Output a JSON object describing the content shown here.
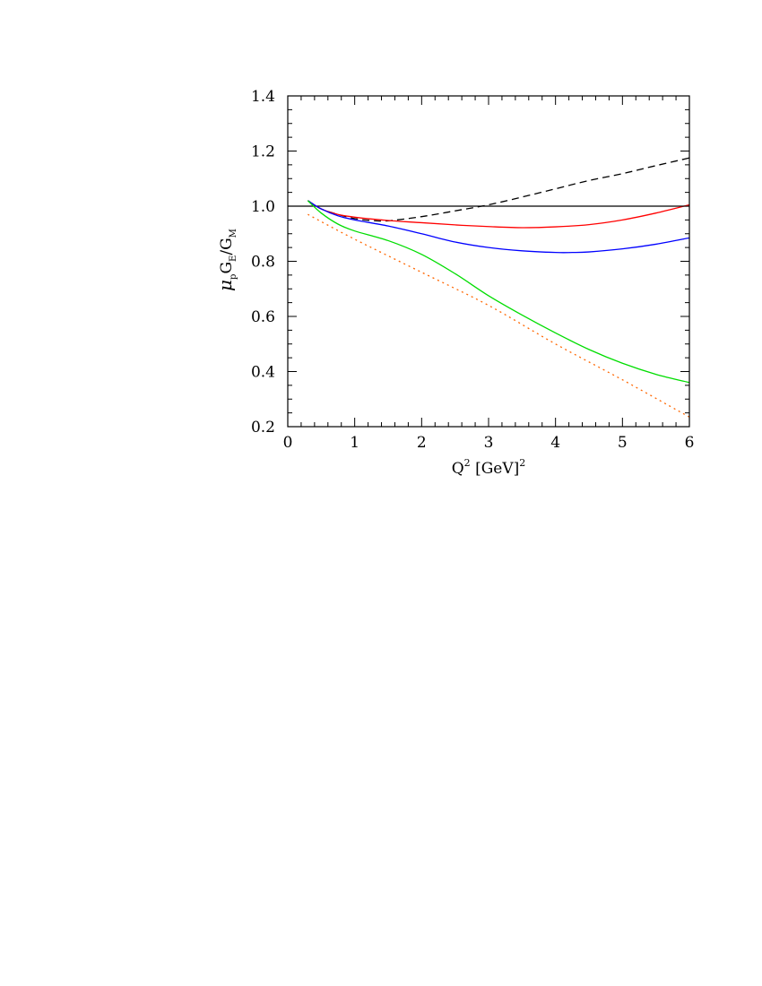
{
  "chart_data": {
    "type": "line",
    "title": "",
    "xlabel": {
      "base": "Q",
      "sup": "2",
      "unit": "[GeV]",
      "unit_sup": "2"
    },
    "ylabel": {
      "mu": "μ",
      "mu_sub": "p",
      "g1": "G",
      "g1_sub": "E",
      "slash": "/",
      "g2": "G",
      "g2_sub": "M"
    },
    "xlim": [
      0,
      6
    ],
    "ylim": [
      0.2,
      1.4
    ],
    "x_ticks": [
      0,
      1,
      2,
      3,
      4,
      5,
      6
    ],
    "x_tick_labels": [
      "0",
      "1",
      "2",
      "3",
      "4",
      "5",
      "6"
    ],
    "y_ticks": [
      0.2,
      0.4,
      0.6,
      0.8,
      1.0,
      1.2,
      1.4
    ],
    "y_tick_labels": [
      "0.2",
      "0.4",
      "0.6",
      "0.8",
      "1.0",
      "1.2",
      "1.4"
    ],
    "x_minor_step": 0.2,
    "y_minor_step": 0.05,
    "grid": false,
    "legend": "none",
    "series": [
      {
        "color": "#000000",
        "style": "solid",
        "x": [
          0,
          6
        ],
        "y": [
          1.0,
          1.0
        ]
      },
      {
        "color": "#000000",
        "style": "dashed",
        "x": [
          0.3,
          0.5,
          0.75,
          1.0,
          1.25,
          1.5,
          2.0,
          2.5,
          3.0,
          3.5,
          4.0,
          4.5,
          5.0,
          5.5,
          6.0
        ],
        "y": [
          1.02,
          0.99,
          0.97,
          0.955,
          0.948,
          0.947,
          0.962,
          0.983,
          1.005,
          1.033,
          1.063,
          1.093,
          1.118,
          1.147,
          1.175
        ]
      },
      {
        "color": "#ff0000",
        "style": "solid",
        "x": [
          0.3,
          0.5,
          0.75,
          1.0,
          1.5,
          2.0,
          2.5,
          3.0,
          3.5,
          4.0,
          4.5,
          5.0,
          5.5,
          6.0
        ],
        "y": [
          1.02,
          0.99,
          0.97,
          0.96,
          0.948,
          0.94,
          0.932,
          0.926,
          0.922,
          0.925,
          0.933,
          0.95,
          0.975,
          1.005
        ]
      },
      {
        "color": "#0000ff",
        "style": "solid",
        "x": [
          0.3,
          0.5,
          0.75,
          1.0,
          1.5,
          2.0,
          2.5,
          3.0,
          3.5,
          4.0,
          4.25,
          4.5,
          5.0,
          5.5,
          6.0
        ],
        "y": [
          1.02,
          0.99,
          0.965,
          0.95,
          0.928,
          0.9,
          0.87,
          0.85,
          0.838,
          0.832,
          0.832,
          0.834,
          0.845,
          0.862,
          0.885
        ]
      },
      {
        "color": "#00dd00",
        "style": "solid",
        "x": [
          0.3,
          0.5,
          0.75,
          1.0,
          1.5,
          2.0,
          2.5,
          3.0,
          3.5,
          4.0,
          4.5,
          5.0,
          5.5,
          6.0
        ],
        "y": [
          1.02,
          0.975,
          0.935,
          0.91,
          0.875,
          0.825,
          0.755,
          0.675,
          0.605,
          0.54,
          0.48,
          0.43,
          0.39,
          0.36
        ]
      },
      {
        "color": "#ff6600",
        "style": "dotted",
        "x": [
          0.3,
          1.0,
          2.0,
          3.0,
          4.0,
          5.0,
          6.0
        ],
        "y": [
          0.97,
          0.88,
          0.76,
          0.64,
          0.5,
          0.37,
          0.235
        ]
      }
    ]
  }
}
